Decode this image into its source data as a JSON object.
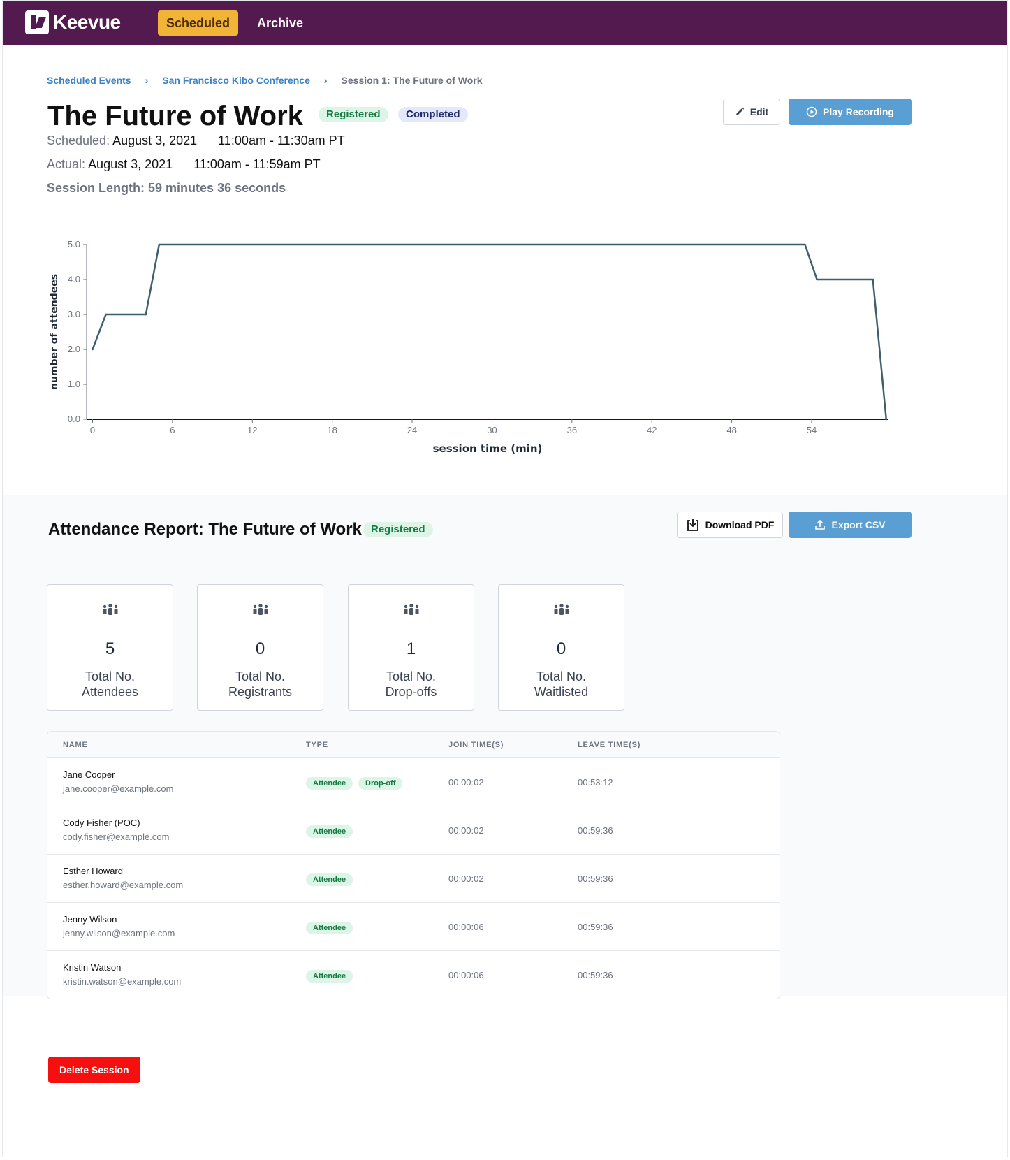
{
  "nav": {
    "logo": "Keevue",
    "tabs": [
      {
        "label": "Scheduled",
        "active": true
      },
      {
        "label": "Archive",
        "active": false
      }
    ]
  },
  "breadcrumb": [
    "Scheduled Events",
    "San Francisco Kibo Conference",
    "Session 1: The Future of Work"
  ],
  "session": {
    "title": "The Future of Work",
    "badges": [
      "Registered",
      "Completed"
    ],
    "scheduled_label": "Scheduled:",
    "scheduled_date": "August 3, 2021",
    "scheduled_time": "11:00am - 11:30am PT",
    "actual_label": "Actual:",
    "actual_date": "August 3, 2021",
    "actual_time": "11:00am - 11:59am PT",
    "length_label": "Session Length:",
    "length_value": "59 minutes 36 seconds"
  },
  "actions": {
    "edit": "Edit",
    "play": "Play Recording"
  },
  "chart_data": {
    "type": "line",
    "xlabel": "session time (min)",
    "ylabel": "number of attendees",
    "xlim": [
      0,
      59.6
    ],
    "ylim": [
      0,
      5
    ],
    "x_ticks": [
      0,
      6,
      12,
      18,
      24,
      30,
      36,
      42,
      48,
      54
    ],
    "y_ticks": [
      "0.0",
      "1.0",
      "2.0",
      "3.0",
      "4.0",
      "5.0"
    ],
    "series": [
      {
        "x": [
          0,
          1,
          4,
          5,
          53.5,
          54.4,
          58.6,
          59.6
        ],
        "y": [
          2,
          3,
          3,
          5,
          5,
          4,
          4,
          0
        ]
      }
    ],
    "color": "#3d5f6e"
  },
  "report": {
    "title": "Attendance Report: The Future of Work",
    "badge": "Registered",
    "download": "Download PDF",
    "export": "Export CSV",
    "cards": [
      {
        "value": "5",
        "label1": "Total No.",
        "label2": "Attendees"
      },
      {
        "value": "0",
        "label1": "Total No.",
        "label2": "Registrants"
      },
      {
        "value": "1",
        "label1": "Total No.",
        "label2": "Drop-offs"
      },
      {
        "value": "0",
        "label1": "Total No.",
        "label2": "Waitlisted"
      }
    ],
    "columns": [
      "NAME",
      "TYPE",
      "JOIN TIME(S)",
      "LEAVE TIME(S)"
    ],
    "rows": [
      {
        "name": "Jane Cooper",
        "email": "jane.cooper@example.com",
        "types": [
          "Attendee",
          "Drop-off"
        ],
        "join": "00:00:02",
        "leave": "00:53:12"
      },
      {
        "name": "Cody Fisher (POC)",
        "email": "cody.fisher@example.com",
        "types": [
          "Attendee"
        ],
        "join": "00:00:02",
        "leave": "00:59:36"
      },
      {
        "name": "Esther Howard",
        "email": "esther.howard@example.com",
        "types": [
          "Attendee"
        ],
        "join": "00:00:02",
        "leave": "00:59:36"
      },
      {
        "name": "Jenny Wilson",
        "email": "jenny.wilson@example.com",
        "types": [
          "Attendee"
        ],
        "join": "00:00:06",
        "leave": "00:59:36"
      },
      {
        "name": "Kristin Watson",
        "email": "kristin.watson@example.com",
        "types": [
          "Attendee"
        ],
        "join": "00:00:06",
        "leave": "00:59:36"
      }
    ]
  },
  "delete_label": "Delete Session"
}
